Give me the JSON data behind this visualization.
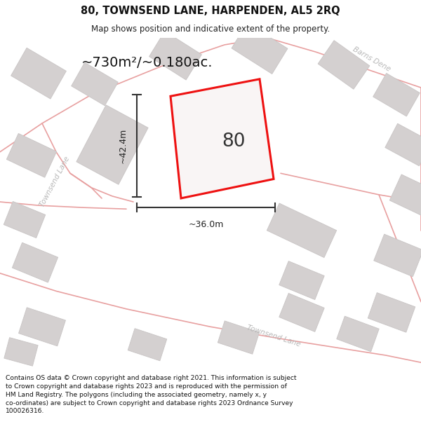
{
  "title_line1": "80, TOWNSEND LANE, HARPENDEN, AL5 2RQ",
  "title_line2": "Map shows position and indicative extent of the property.",
  "footer_text": "Contains OS data © Crown copyright and database right 2021. This information is subject to Crown copyright and database rights 2023 and is reproduced with the permission of HM Land Registry. The polygons (including the associated geometry, namely x, y co-ordinates) are subject to Crown copyright and database rights 2023 Ordnance Survey 100026316.",
  "plot_color": "#ee1111",
  "plot_label": "80",
  "area_label": "~730m²/~0.180ac.",
  "dim_width_label": "~36.0m",
  "dim_height_label": "~42.4m",
  "road_label_upper_left": "Townsend Lane",
  "road_label_lower": "Townsend Lane",
  "road_label_upper_right": "Barns Dene",
  "map_bg": "#f7f5f5",
  "building_fc": "#d4d0d0",
  "building_ec": "#c8c4c4",
  "road_color": "#e8a0a0",
  "title_fontsize": 10.5,
  "subtitle_fontsize": 8.5,
  "footer_fontsize": 6.6
}
